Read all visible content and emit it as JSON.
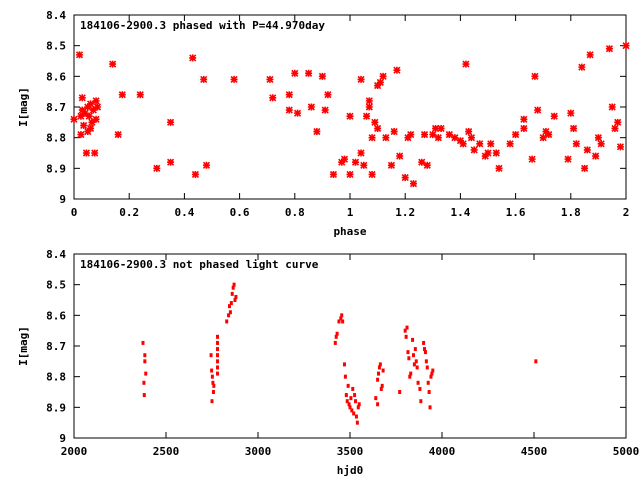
{
  "chart_data": [
    {
      "type": "scatter",
      "title": "184106-2900.3 phased with P=44.970day",
      "xlabel": "phase",
      "ylabel": "I[mag]",
      "xlim": [
        0,
        2
      ],
      "ylim": [
        8.4,
        9
      ],
      "y_inverted": true,
      "grid": false,
      "xticks": [
        0,
        0.2,
        0.4,
        0.6,
        0.8,
        1,
        1.2,
        1.4,
        1.6,
        1.8,
        2
      ],
      "xtick_labels": [
        "0",
        "0.2",
        "0.4",
        "0.6",
        "0.8",
        "1",
        "1.2",
        "1.4",
        "1.6",
        "1.8",
        "2"
      ],
      "yticks": [
        8.4,
        8.5,
        8.6,
        8.7,
        8.8,
        8.9,
        9
      ],
      "ytick_labels": [
        "8.4",
        "8.5",
        "8.6",
        "8.7",
        "8.8",
        "8.9",
        "9"
      ],
      "marker_color": "#ff0000",
      "points": [
        [
          0.0,
          8.74
        ],
        [
          0.02,
          8.53
        ],
        [
          0.025,
          8.73
        ],
        [
          0.025,
          8.79
        ],
        [
          0.03,
          8.67
        ],
        [
          0.03,
          8.71
        ],
        [
          0.035,
          8.76
        ],
        [
          0.04,
          8.72
        ],
        [
          0.045,
          8.85
        ],
        [
          0.05,
          8.7
        ],
        [
          0.05,
          8.78
        ],
        [
          0.055,
          8.73
        ],
        [
          0.06,
          8.69
        ],
        [
          0.06,
          8.77
        ],
        [
          0.065,
          8.75
        ],
        [
          0.07,
          8.71
        ],
        [
          0.075,
          8.85
        ],
        [
          0.08,
          8.68
        ],
        [
          0.08,
          8.74
        ],
        [
          0.085,
          8.7
        ],
        [
          0.14,
          8.56
        ],
        [
          0.16,
          8.79
        ],
        [
          0.175,
          8.66
        ],
        [
          0.24,
          8.66
        ],
        [
          0.3,
          8.9
        ],
        [
          0.35,
          8.75
        ],
        [
          0.35,
          8.88
        ],
        [
          0.43,
          8.54
        ],
        [
          0.44,
          8.92
        ],
        [
          0.47,
          8.61
        ],
        [
          0.48,
          8.89
        ],
        [
          0.58,
          8.61
        ],
        [
          0.71,
          8.61
        ],
        [
          0.72,
          8.67
        ],
        [
          0.78,
          8.71
        ],
        [
          0.78,
          8.66
        ],
        [
          0.8,
          8.59
        ],
        [
          0.81,
          8.72
        ],
        [
          0.85,
          8.59
        ],
        [
          0.86,
          8.7
        ],
        [
          0.88,
          8.78
        ],
        [
          0.9,
          8.6
        ],
        [
          0.91,
          8.71
        ],
        [
          0.92,
          8.66
        ],
        [
          0.94,
          8.92
        ],
        [
          0.97,
          8.88
        ],
        [
          0.98,
          8.87
        ],
        [
          1.0,
          8.73
        ],
        [
          1.0,
          8.92
        ],
        [
          1.02,
          8.88
        ],
        [
          1.04,
          8.61
        ],
        [
          1.04,
          8.85
        ],
        [
          1.05,
          8.89
        ],
        [
          1.06,
          8.73
        ],
        [
          1.07,
          8.68
        ],
        [
          1.07,
          8.7
        ],
        [
          1.08,
          8.8
        ],
        [
          1.08,
          8.92
        ],
        [
          1.09,
          8.75
        ],
        [
          1.1,
          8.77
        ],
        [
          1.1,
          8.63
        ],
        [
          1.11,
          8.62
        ],
        [
          1.12,
          8.6
        ],
        [
          1.13,
          8.8
        ],
        [
          1.15,
          8.89
        ],
        [
          1.16,
          8.78
        ],
        [
          1.17,
          8.58
        ],
        [
          1.18,
          8.86
        ],
        [
          1.2,
          8.93
        ],
        [
          1.21,
          8.8
        ],
        [
          1.22,
          8.79
        ],
        [
          1.23,
          8.95
        ],
        [
          1.26,
          8.88
        ],
        [
          1.27,
          8.79
        ],
        [
          1.28,
          8.89
        ],
        [
          1.3,
          8.79
        ],
        [
          1.31,
          8.77
        ],
        [
          1.32,
          8.8
        ],
        [
          1.33,
          8.77
        ],
        [
          1.36,
          8.79
        ],
        [
          1.38,
          8.8
        ],
        [
          1.4,
          8.81
        ],
        [
          1.41,
          8.82
        ],
        [
          1.42,
          8.56
        ],
        [
          1.43,
          8.78
        ],
        [
          1.44,
          8.8
        ],
        [
          1.45,
          8.84
        ],
        [
          1.47,
          8.82
        ],
        [
          1.49,
          8.86
        ],
        [
          1.5,
          8.85
        ],
        [
          1.51,
          8.82
        ],
        [
          1.53,
          8.85
        ],
        [
          1.54,
          8.9
        ],
        [
          1.58,
          8.82
        ],
        [
          1.6,
          8.79
        ],
        [
          1.63,
          8.74
        ],
        [
          1.63,
          8.77
        ],
        [
          1.66,
          8.87
        ],
        [
          1.67,
          8.6
        ],
        [
          1.68,
          8.71
        ],
        [
          1.7,
          8.8
        ],
        [
          1.71,
          8.78
        ],
        [
          1.72,
          8.79
        ],
        [
          1.74,
          8.73
        ],
        [
          1.79,
          8.87
        ],
        [
          1.8,
          8.72
        ],
        [
          1.81,
          8.77
        ],
        [
          1.82,
          8.82
        ],
        [
          1.84,
          8.57
        ],
        [
          1.85,
          8.9
        ],
        [
          1.86,
          8.84
        ],
        [
          1.87,
          8.53
        ],
        [
          1.89,
          8.86
        ],
        [
          1.9,
          8.8
        ],
        [
          1.91,
          8.82
        ],
        [
          1.94,
          8.51
        ],
        [
          1.95,
          8.7
        ],
        [
          1.96,
          8.77
        ],
        [
          1.97,
          8.75
        ],
        [
          1.98,
          8.83
        ],
        [
          2.0,
          8.5
        ]
      ]
    },
    {
      "type": "scatter",
      "title": "184106-2900.3 not phased light curve",
      "xlabel": "hjd0",
      "ylabel": "I[mag]",
      "xlim": [
        2000,
        5000
      ],
      "ylim": [
        8.4,
        9
      ],
      "y_inverted": true,
      "grid": false,
      "xticks": [
        2000,
        2500,
        3000,
        3500,
        4000,
        4500,
        5000
      ],
      "xtick_labels": [
        "2000",
        "2500",
        "3000",
        "3500",
        "4000",
        "4500",
        "5000"
      ],
      "yticks": [
        8.4,
        8.5,
        8.6,
        8.7,
        8.8,
        8.9,
        9
      ],
      "ytick_labels": [
        "8.4",
        "8.5",
        "8.6",
        "8.7",
        "8.8",
        "8.9",
        "9"
      ],
      "marker_color": "#ff0000",
      "points": [
        [
          2375,
          8.69
        ],
        [
          2385,
          8.73
        ],
        [
          2385,
          8.75
        ],
        [
          2390,
          8.79
        ],
        [
          2380,
          8.82
        ],
        [
          2382,
          8.86
        ],
        [
          2745,
          8.73
        ],
        [
          2748,
          8.78
        ],
        [
          2752,
          8.8
        ],
        [
          2755,
          8.82
        ],
        [
          2760,
          8.83
        ],
        [
          2750,
          8.88
        ],
        [
          2758,
          8.85
        ],
        [
          2780,
          8.67
        ],
        [
          2780,
          8.69
        ],
        [
          2780,
          8.71
        ],
        [
          2780,
          8.73
        ],
        [
          2780,
          8.75
        ],
        [
          2780,
          8.77
        ],
        [
          2780,
          8.79
        ],
        [
          2830,
          8.62
        ],
        [
          2840,
          8.6
        ],
        [
          2845,
          8.57
        ],
        [
          2850,
          8.59
        ],
        [
          2855,
          8.56
        ],
        [
          2860,
          8.53
        ],
        [
          2865,
          8.51
        ],
        [
          2870,
          8.5
        ],
        [
          2875,
          8.55
        ],
        [
          2880,
          8.54
        ],
        [
          3420,
          8.69
        ],
        [
          3425,
          8.67
        ],
        [
          3430,
          8.66
        ],
        [
          3440,
          8.62
        ],
        [
          3450,
          8.61
        ],
        [
          3455,
          8.6
        ],
        [
          3460,
          8.62
        ],
        [
          3470,
          8.76
        ],
        [
          3475,
          8.8
        ],
        [
          3480,
          8.86
        ],
        [
          3485,
          8.88
        ],
        [
          3490,
          8.83
        ],
        [
          3495,
          8.89
        ],
        [
          3500,
          8.9
        ],
        [
          3505,
          8.87
        ],
        [
          3510,
          8.91
        ],
        [
          3515,
          8.84
        ],
        [
          3520,
          8.92
        ],
        [
          3525,
          8.86
        ],
        [
          3530,
          8.88
        ],
        [
          3535,
          8.93
        ],
        [
          3540,
          8.95
        ],
        [
          3545,
          8.9
        ],
        [
          3550,
          8.89
        ],
        [
          3640,
          8.87
        ],
        [
          3650,
          8.81
        ],
        [
          3655,
          8.79
        ],
        [
          3660,
          8.77
        ],
        [
          3665,
          8.76
        ],
        [
          3670,
          8.84
        ],
        [
          3675,
          8.83
        ],
        [
          3680,
          8.78
        ],
        [
          3650,
          8.89
        ],
        [
          3770,
          8.85
        ],
        [
          3800,
          8.65
        ],
        [
          3805,
          8.67
        ],
        [
          3810,
          8.64
        ],
        [
          3815,
          8.72
        ],
        [
          3820,
          8.74
        ],
        [
          3825,
          8.8
        ],
        [
          3830,
          8.79
        ],
        [
          3840,
          8.68
        ],
        [
          3845,
          8.73
        ],
        [
          3850,
          8.76
        ],
        [
          3855,
          8.71
        ],
        [
          3860,
          8.75
        ],
        [
          3865,
          8.77
        ],
        [
          3870,
          8.82
        ],
        [
          3880,
          8.84
        ],
        [
          3885,
          8.88
        ],
        [
          3900,
          8.69
        ],
        [
          3905,
          8.71
        ],
        [
          3910,
          8.72
        ],
        [
          3915,
          8.75
        ],
        [
          3920,
          8.77
        ],
        [
          3925,
          8.82
        ],
        [
          3930,
          8.85
        ],
        [
          3935,
          8.9
        ],
        [
          3940,
          8.8
        ],
        [
          3945,
          8.79
        ],
        [
          3950,
          8.78
        ],
        [
          4510,
          8.75
        ]
      ]
    }
  ]
}
